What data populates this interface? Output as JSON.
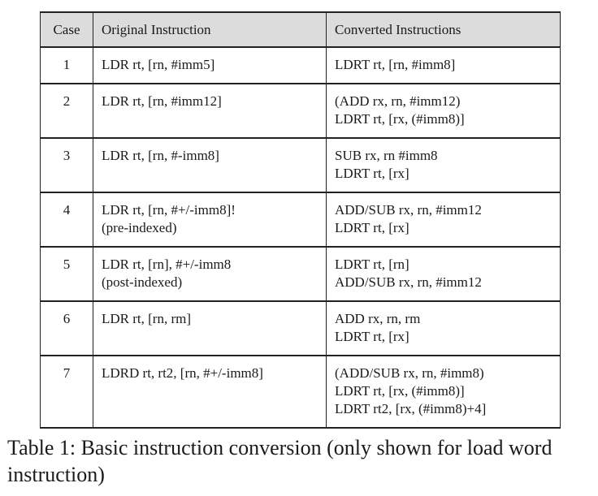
{
  "table": {
    "headers": {
      "case": "Case",
      "original": "Original Instruction",
      "converted": "Converted Instructions"
    },
    "rows": [
      {
        "case": "1",
        "original": [
          "LDR rt, [rn, #imm5]"
        ],
        "converted": [
          "LDRT rt, [rn, #imm8]"
        ]
      },
      {
        "case": "2",
        "original": [
          "LDR rt, [rn, #imm12]"
        ],
        "converted": [
          "(ADD rx, rn, #imm12)",
          "LDRT rt, [rx, (#imm8)]"
        ]
      },
      {
        "case": "3",
        "original": [
          "LDR rt, [rn, #-imm8]"
        ],
        "converted": [
          "SUB rx, rn #imm8",
          "LDRT rt, [rx]"
        ]
      },
      {
        "case": "4",
        "original": [
          "LDR rt, [rn, #+/-imm8]!",
          "(pre-indexed)"
        ],
        "converted": [
          "ADD/SUB rx, rn, #imm12",
          "LDRT rt, [rx]"
        ]
      },
      {
        "case": "5",
        "original": [
          "LDR rt, [rn], #+/-imm8",
          "(post-indexed)"
        ],
        "converted": [
          "LDRT rt, [rn]",
          "ADD/SUB rx, rn, #imm12"
        ]
      },
      {
        "case": "6",
        "original": [
          "LDR rt, [rn, rm]"
        ],
        "converted": [
          "ADD rx, rn, rm",
          "LDRT rt, [rx]"
        ]
      },
      {
        "case": "7",
        "original": [
          "LDRD rt, rt2, [rn, #+/-imm8]"
        ],
        "converted": [
          "(ADD/SUB rx, rn, #imm8)",
          "LDRT rt, [rx, (#imm8)]",
          "LDRT rt2, [rx, (#imm8)+4]"
        ]
      }
    ]
  },
  "caption": "Table 1: Basic instruction conversion (only shown for load word instruction)"
}
